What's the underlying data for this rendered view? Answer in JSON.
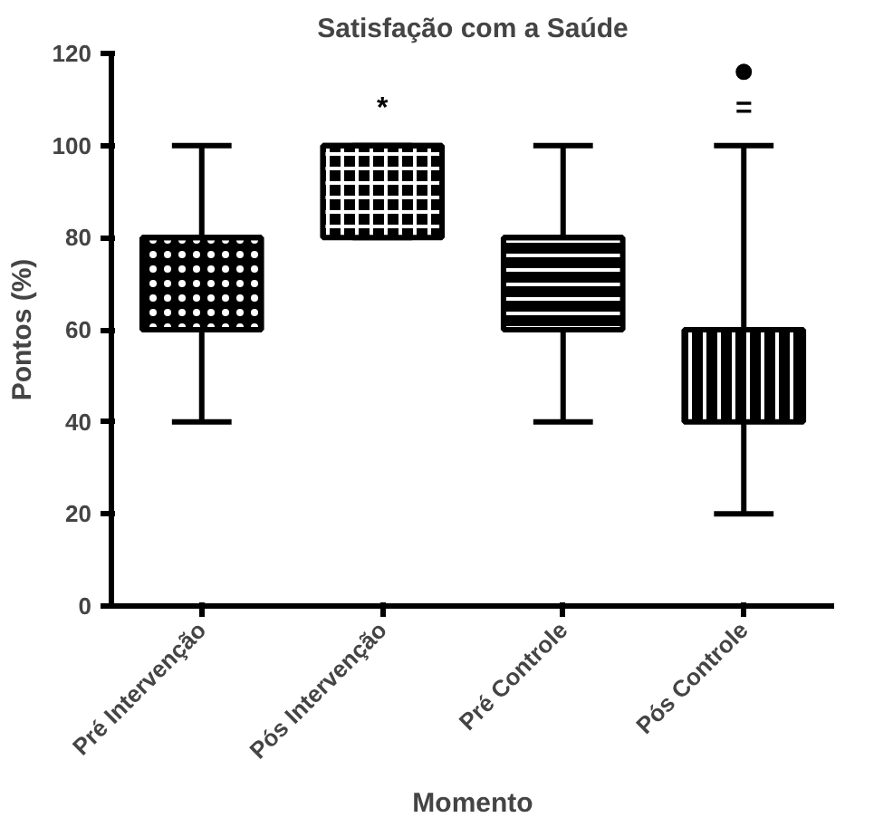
{
  "chart_data": {
    "type": "box",
    "title": "Satisfação com a Saúde",
    "xlabel": "Momento",
    "ylabel": "Pontos (%)",
    "categories": [
      "Pré Intervenção",
      "Pós Intervenção",
      "Pré Controle",
      "Pós Controle"
    ],
    "boxes": [
      {
        "low": 40,
        "q1": 60,
        "median": 80,
        "q3": 80,
        "high": 100
      },
      {
        "low": 80,
        "q1": 80,
        "median": 100,
        "q3": 100,
        "high": 100
      },
      {
        "low": 40,
        "q1": 60,
        "median": 80,
        "q3": 80,
        "high": 100
      },
      {
        "low": 20,
        "q1": 40,
        "median": 60,
        "q3": 60,
        "high": 100,
        "outliers": [
          116
        ]
      }
    ],
    "color": "#000000",
    "ylim": [
      0,
      120
    ],
    "yticks": [
      0,
      20,
      40,
      60,
      80,
      100,
      120
    ],
    "grid": false,
    "annotations": [
      "*",
      "="
    ]
  }
}
